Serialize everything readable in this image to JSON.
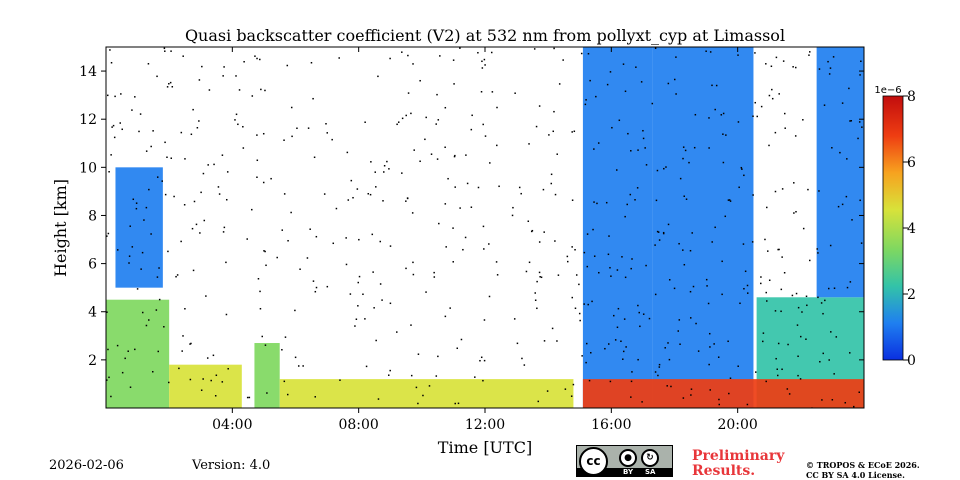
{
  "chart_data": {
    "type": "heatmap",
    "title": "Quasi backscatter coefficient (V2) at 532 nm from pollyxt_cyp at Limassol",
    "xlabel": "Time [UTC]",
    "ylabel": "Height [km]",
    "xlim": [
      0,
      24
    ],
    "ylim": [
      0,
      15
    ],
    "x_ticks": [
      {
        "value": 4,
        "label": "04:00"
      },
      {
        "value": 8,
        "label": "08:00"
      },
      {
        "value": 12,
        "label": "12:00"
      },
      {
        "value": 16,
        "label": "16:00"
      },
      {
        "value": 20,
        "label": "20:00"
      }
    ],
    "y_ticks": [
      {
        "value": 2,
        "label": "2"
      },
      {
        "value": 4,
        "label": "4"
      },
      {
        "value": 6,
        "label": "6"
      },
      {
        "value": 8,
        "label": "8"
      },
      {
        "value": 10,
        "label": "10"
      },
      {
        "value": 12,
        "label": "12"
      },
      {
        "value": 14,
        "label": "14"
      }
    ],
    "colorbar": {
      "scale_label": "1e−6",
      "range": [
        0,
        8
      ],
      "ticks": [
        "0",
        "2",
        "4",
        "6",
        "8"
      ],
      "colors": [
        "#0a2fe0",
        "#1f7ff0",
        "#33c3a8",
        "#7fd860",
        "#d8e23a",
        "#f7a21f",
        "#ee3d12",
        "#c20d0d"
      ]
    },
    "layers": [
      {
        "name": "aerosol layer 00-02",
        "time": [
          0.0,
          2.0
        ],
        "height": [
          0.0,
          4.5
        ],
        "value": 3.2
      },
      {
        "name": "aerosol layer 02-04",
        "time": [
          2.0,
          4.3
        ],
        "height": [
          0.0,
          1.8
        ],
        "value": 4.5
      },
      {
        "name": "cloud 00-02",
        "time": [
          0.3,
          1.8
        ],
        "height": [
          5.0,
          10.0
        ],
        "value": 1.5
      },
      {
        "name": "boundary layer 04-05",
        "time": [
          4.7,
          5.5
        ],
        "height": [
          0.0,
          2.7
        ],
        "value": 3.0
      },
      {
        "name": "boundary layer 06-15",
        "time": [
          5.5,
          14.8
        ],
        "height": [
          0.0,
          1.2
        ],
        "value": 4.0
      },
      {
        "name": "aerosol 15-17",
        "time": [
          15.1,
          17.3
        ],
        "height": [
          0.0,
          15.0
        ],
        "value": 1.2
      },
      {
        "name": "aerosol 17-20.5",
        "time": [
          17.3,
          20.5
        ],
        "height": [
          0.0,
          15.0
        ],
        "value": 1.3
      },
      {
        "name": "aerosol 20.6-24",
        "time": [
          20.6,
          24.0
        ],
        "height": [
          0.0,
          4.6
        ],
        "value": 2.0
      },
      {
        "name": "cloud 22.5-24",
        "time": [
          22.5,
          24.0
        ],
        "height": [
          4.6,
          15.0
        ],
        "value": 1.1
      },
      {
        "name": "surface layer 15-24",
        "time": [
          15.1,
          24.0
        ],
        "height": [
          0.0,
          1.2
        ],
        "value": 6.5
      }
    ]
  },
  "footer": {
    "date": "2026-02-06",
    "version": "Version: 4.0",
    "preliminary_line1": "Preliminary",
    "preliminary_line2": "Results.",
    "copyright_line1": "© TROPOS & ECoE 2026.",
    "copyright_line2": "CC BY SA 4.0 License.",
    "badge_by": "BY",
    "badge_sa": "SA",
    "badge_cc": "cc"
  }
}
